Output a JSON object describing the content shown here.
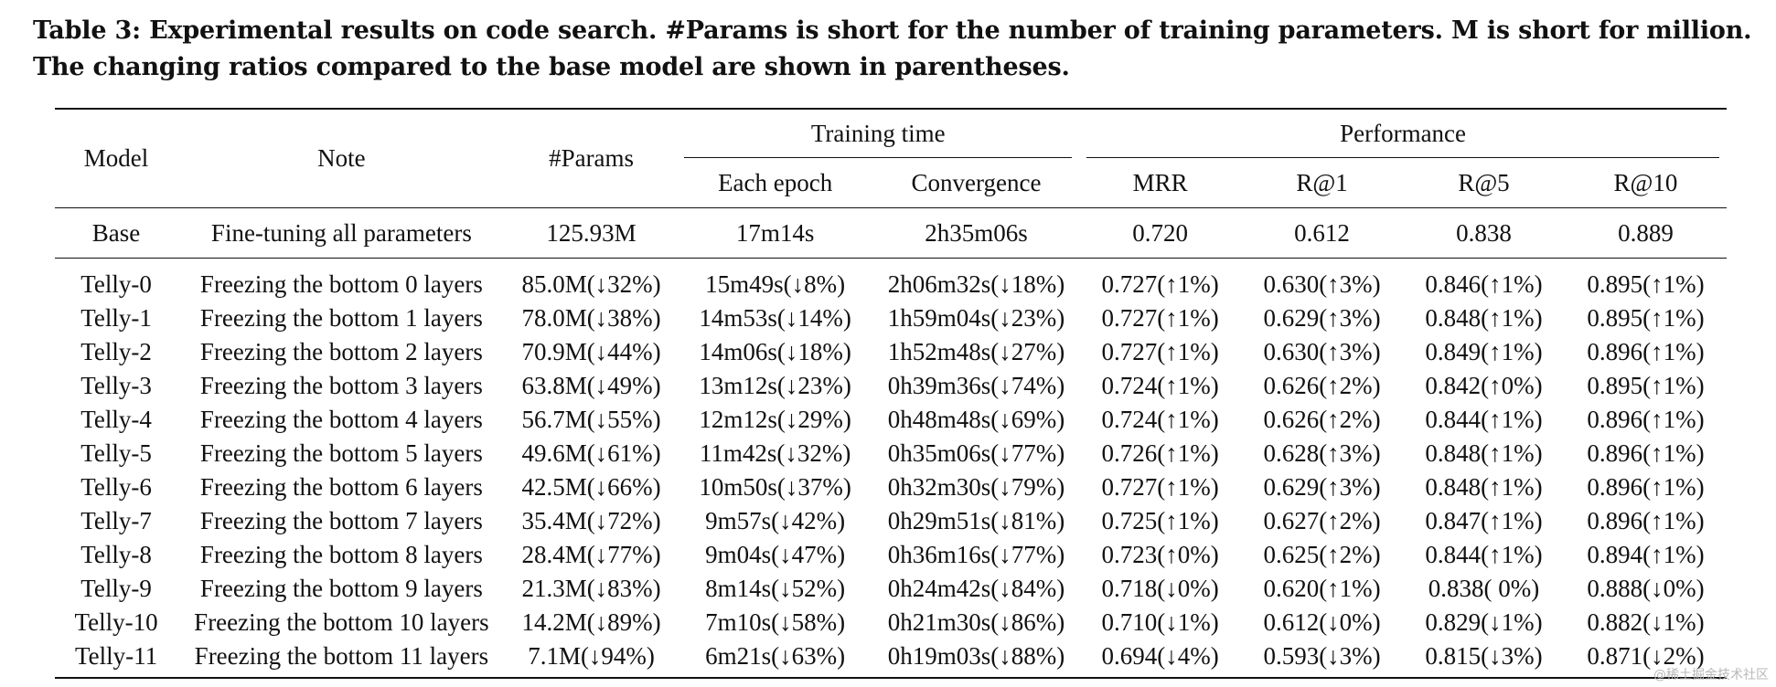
{
  "caption": {
    "line1": "Table 3: Experimental results on code search. #Params is short for the number of training parameters. M is short for million.",
    "line2": "The changing ratios compared to the base model are shown in parentheses."
  },
  "headers": {
    "model": "Model",
    "note": "Note",
    "params": "#Params",
    "training_time": "Training time",
    "performance": "Performance",
    "each_epoch": "Each epoch",
    "convergence": "Convergence",
    "mrr": "MRR",
    "r1": "R@1",
    "r5": "R@5",
    "r10": "R@10"
  },
  "base": [
    "Base",
    "Fine-tuning all parameters",
    "125.93M",
    "17m14s",
    "2h35m06s",
    "0.720",
    "0.612",
    "0.838",
    "0.889"
  ],
  "rows": [
    [
      "Telly-0",
      "Freezing the bottom 0 layers",
      "85.0M(↓32%)",
      "15m49s(↓8%)",
      "2h06m32s(↓18%)",
      "0.727(↑1%)",
      "0.630(↑3%)",
      "0.846(↑1%)",
      "0.895(↑1%)"
    ],
    [
      "Telly-1",
      "Freezing the bottom 1 layers",
      "78.0M(↓38%)",
      "14m53s(↓14%)",
      "1h59m04s(↓23%)",
      "0.727(↑1%)",
      "0.629(↑3%)",
      "0.848(↑1%)",
      "0.895(↑1%)"
    ],
    [
      "Telly-2",
      "Freezing the bottom 2 layers",
      "70.9M(↓44%)",
      "14m06s(↓18%)",
      "1h52m48s(↓27%)",
      "0.727(↑1%)",
      "0.630(↑3%)",
      "0.849(↑1%)",
      "0.896(↑1%)"
    ],
    [
      "Telly-3",
      "Freezing the bottom 3 layers",
      "63.8M(↓49%)",
      "13m12s(↓23%)",
      "0h39m36s(↓74%)",
      "0.724(↑1%)",
      "0.626(↑2%)",
      "0.842(↑0%)",
      "0.895(↑1%)"
    ],
    [
      "Telly-4",
      "Freezing the bottom 4 layers",
      "56.7M(↓55%)",
      "12m12s(↓29%)",
      "0h48m48s(↓69%)",
      "0.724(↑1%)",
      "0.626(↑2%)",
      "0.844(↑1%)",
      "0.896(↑1%)"
    ],
    [
      "Telly-5",
      "Freezing the bottom 5 layers",
      "49.6M(↓61%)",
      "11m42s(↓32%)",
      "0h35m06s(↓77%)",
      "0.726(↑1%)",
      "0.628(↑3%)",
      "0.848(↑1%)",
      "0.896(↑1%)"
    ],
    [
      "Telly-6",
      "Freezing the bottom 6 layers",
      "42.5M(↓66%)",
      "10m50s(↓37%)",
      "0h32m30s(↓79%)",
      "0.727(↑1%)",
      "0.629(↑3%)",
      "0.848(↑1%)",
      "0.896(↑1%)"
    ],
    [
      "Telly-7",
      "Freezing the bottom 7 layers",
      "35.4M(↓72%)",
      "9m57s(↓42%)",
      "0h29m51s(↓81%)",
      "0.725(↑1%)",
      "0.627(↑2%)",
      "0.847(↑1%)",
      "0.896(↑1%)"
    ],
    [
      "Telly-8",
      "Freezing the bottom 8 layers",
      "28.4M(↓77%)",
      "9m04s(↓47%)",
      "0h36m16s(↓77%)",
      "0.723(↑0%)",
      "0.625(↑2%)",
      "0.844(↑1%)",
      "0.894(↑1%)"
    ],
    [
      "Telly-9",
      "Freezing the bottom 9 layers",
      "21.3M(↓83%)",
      "8m14s(↓52%)",
      "0h24m42s(↓84%)",
      "0.718(↓0%)",
      "0.620(↑1%)",
      "0.838( 0%)",
      "0.888(↓0%)"
    ],
    [
      "Telly-10",
      "Freezing the bottom 10 layers",
      "14.2M(↓89%)",
      "7m10s(↓58%)",
      "0h21m30s(↓86%)",
      "0.710(↓1%)",
      "0.612(↓0%)",
      "0.829(↓1%)",
      "0.882(↓1%)"
    ],
    [
      "Telly-11",
      "Freezing the bottom 11 layers",
      "7.1M(↓94%)",
      "6m21s(↓63%)",
      "0h19m03s(↓88%)",
      "0.694(↓4%)",
      "0.593(↓3%)",
      "0.815(↓3%)",
      "0.871(↓2%)"
    ]
  ],
  "watermark": "@稀土掘金技术社区"
}
